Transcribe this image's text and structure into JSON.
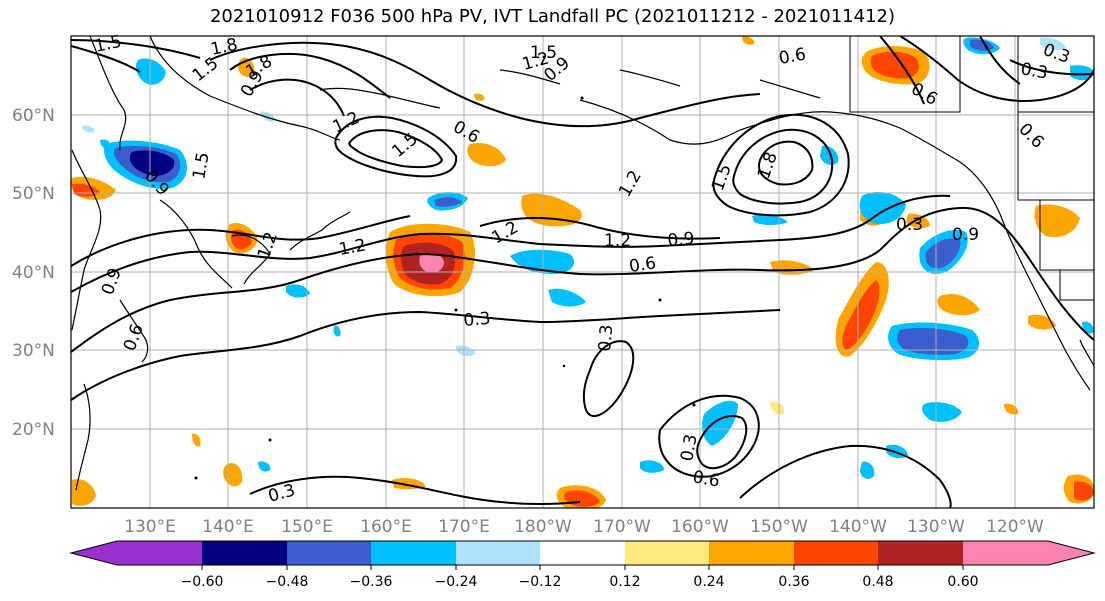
{
  "title": "2021010912 F036 500 hPa PV, IVT Landfall PC (2021011212 - 2021011412)",
  "latitude_labels": [
    "60°N",
    "50°N",
    "40°N",
    "30°N",
    "20°N"
  ],
  "longitude_labels": [
    "130°E",
    "140°E",
    "150°E",
    "160°E",
    "170°E",
    "180°W",
    "170°W",
    "160°W",
    "150°W",
    "140°W",
    "130°W",
    "120°W"
  ],
  "contour_labels": [
    "1.5",
    "1.8",
    "1.5",
    "0.9",
    "1.2",
    "1.5",
    "0.6",
    "1.2",
    "1.5",
    "0.6",
    "1.2",
    "1.2",
    "0.9",
    "0.6",
    "0.3",
    "0.3",
    "0.6",
    "0.3",
    "0.6",
    "0.3",
    "0.6",
    "0.3",
    "0.9",
    "1.5",
    "1.8",
    "1.2",
    "0.9",
    "1.2",
    "0.3",
    "0.9",
    "1.5",
    "1.8",
    "1.2",
    "0.9",
    "0.6",
    "0.3"
  ],
  "colorbar": {
    "tick_labels": [
      "−0.60",
      "−0.48",
      "−0.36",
      "−0.24",
      "−0.12",
      "0.12",
      "0.24",
      "0.36",
      "0.48",
      "0.60"
    ],
    "colors": [
      "#9a31cf",
      "#000080",
      "#3a5ecc",
      "#00bfff",
      "#aee2fa",
      "#ffffff",
      "#ffe980",
      "#ffa500",
      "#ff4500",
      "#b22222",
      "#ff83b0"
    ]
  }
}
